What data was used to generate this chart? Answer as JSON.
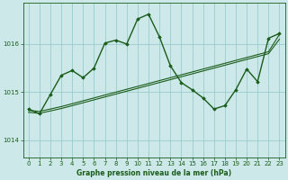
{
  "title": "Graphe pression niveau de la mer (hPa)",
  "bg_color": "#cce8e8",
  "grid_color": "#99cccc",
  "line_color": "#1a5c1a",
  "x_ticks": [
    0,
    1,
    2,
    3,
    4,
    5,
    6,
    7,
    8,
    9,
    10,
    11,
    12,
    13,
    14,
    15,
    16,
    17,
    18,
    19,
    20,
    21,
    22,
    23
  ],
  "y_ticks": [
    1014,
    1015,
    1016
  ],
  "ylim": [
    1013.65,
    1016.85
  ],
  "xlim": [
    -0.5,
    23.5
  ],
  "envelope1": {
    "x": [
      0,
      1,
      2,
      3,
      4,
      5,
      6,
      7,
      8,
      9,
      10,
      11,
      12,
      13,
      14,
      15,
      16,
      17,
      18,
      19,
      20,
      21,
      22,
      23
    ],
    "y": [
      1014.62,
      1014.6,
      1014.65,
      1014.7,
      1014.76,
      1014.82,
      1014.88,
      1014.94,
      1015.0,
      1015.06,
      1015.12,
      1015.18,
      1015.24,
      1015.3,
      1015.36,
      1015.42,
      1015.48,
      1015.54,
      1015.6,
      1015.66,
      1015.72,
      1015.78,
      1015.84,
      1016.2
    ]
  },
  "envelope2": {
    "x": [
      0,
      1,
      2,
      3,
      4,
      5,
      6,
      7,
      8,
      9,
      10,
      11,
      12,
      13,
      14,
      15,
      16,
      17,
      18,
      19,
      20,
      21,
      22,
      23
    ],
    "y": [
      1014.58,
      1014.56,
      1014.61,
      1014.66,
      1014.72,
      1014.78,
      1014.84,
      1014.9,
      1014.96,
      1015.02,
      1015.08,
      1015.14,
      1015.2,
      1015.26,
      1015.32,
      1015.38,
      1015.44,
      1015.5,
      1015.56,
      1015.62,
      1015.68,
      1015.74,
      1015.8,
      1016.1
    ]
  },
  "main_series": {
    "x": [
      0,
      1,
      2,
      3,
      4,
      5,
      6,
      7,
      8,
      9,
      10,
      11,
      12,
      13,
      14,
      15,
      16,
      17,
      18,
      19,
      20,
      21,
      22,
      23
    ],
    "y": [
      1014.65,
      1014.55,
      1014.95,
      1015.35,
      1015.45,
      1015.3,
      1015.5,
      1016.02,
      1016.08,
      1016.0,
      1016.52,
      1016.62,
      1016.15,
      1015.55,
      1015.2,
      1015.05,
      1014.88,
      1014.65,
      1014.72,
      1015.05,
      1015.48,
      1015.22,
      1016.12,
      1016.22
    ]
  }
}
